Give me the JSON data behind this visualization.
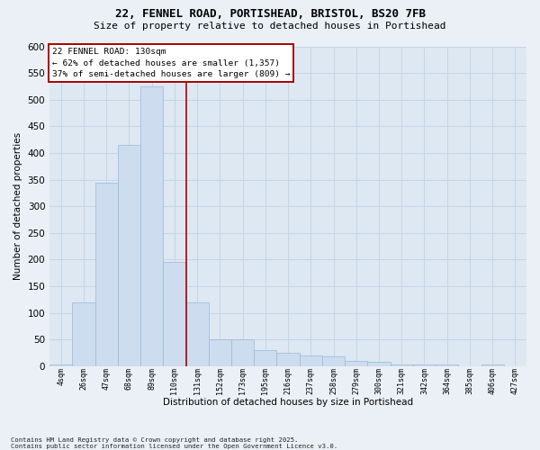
{
  "title_line1": "22, FENNEL ROAD, PORTISHEAD, BRISTOL, BS20 7FB",
  "title_line2": "Size of property relative to detached houses in Portishead",
  "xlabel": "Distribution of detached houses by size in Portishead",
  "ylabel": "Number of detached properties",
  "footnote": "Contains HM Land Registry data © Crown copyright and database right 2025.\nContains public sector information licensed under the Open Government Licence v3.0.",
  "annotation_title": "22 FENNEL ROAD: 130sqm",
  "annotation_line2": "← 62% of detached houses are smaller (1,357)",
  "annotation_line3": "37% of semi-detached houses are larger (809) →",
  "bar_categories": [
    "4sqm",
    "26sqm",
    "47sqm",
    "68sqm",
    "89sqm",
    "110sqm",
    "131sqm",
    "152sqm",
    "173sqm",
    "195sqm",
    "216sqm",
    "237sqm",
    "258sqm",
    "279sqm",
    "300sqm",
    "321sqm",
    "342sqm",
    "364sqm",
    "385sqm",
    "406sqm",
    "427sqm"
  ],
  "bar_values": [
    3,
    120,
    345,
    415,
    525,
    195,
    120,
    50,
    50,
    30,
    25,
    20,
    18,
    10,
    8,
    4,
    3,
    3,
    0,
    3,
    0
  ],
  "bar_color": "#cddcee",
  "bar_edge_color": "#9ab8d8",
  "vline_color": "#aa0000",
  "vline_x_idx": 6,
  "grid_color": "#c5d5e5",
  "ax_background": "#dde8f2",
  "fig_background": "#eaf0f6",
  "annotation_facecolor": "#ffffff",
  "annotation_edgecolor": "#aa0000",
  "ylim": [
    0,
    600
  ],
  "yticks": [
    0,
    50,
    100,
    150,
    200,
    250,
    300,
    350,
    400,
    450,
    500,
    550,
    600
  ]
}
